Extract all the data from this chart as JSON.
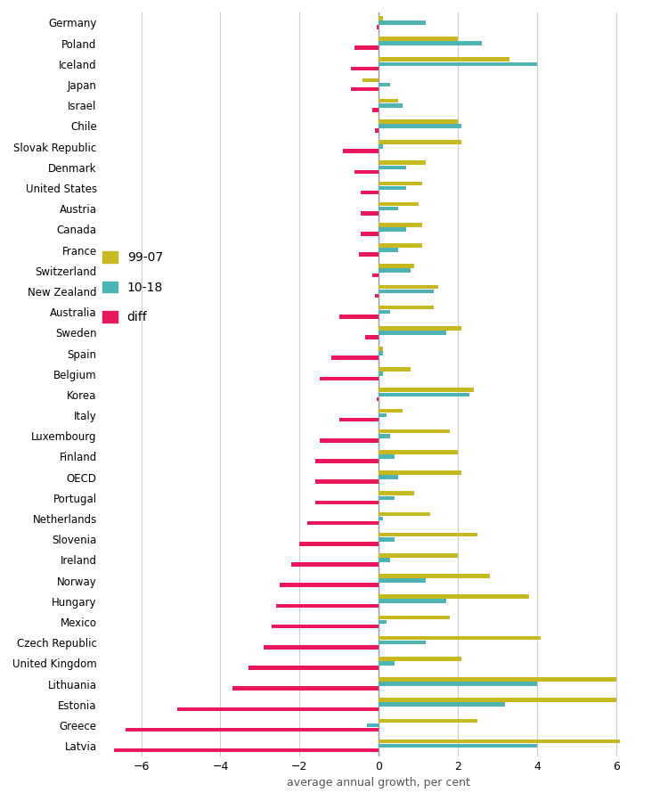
{
  "countries": [
    "Germany",
    "Poland",
    "Iceland",
    "Japan",
    "Israel",
    "Chile",
    "Slovak Republic",
    "Denmark",
    "United States",
    "Austria",
    "Canada",
    "France",
    "Switzerland",
    "New Zealand",
    "Australia",
    "Sweden",
    "Spain",
    "Belgium",
    "Korea",
    "Italy",
    "Luxembourg",
    "Finland",
    "OECD",
    "Portugal",
    "Netherlands",
    "Slovenia",
    "Ireland",
    "Norway",
    "Hungary",
    "Mexico",
    "Czech Republic",
    "United Kingdom",
    "Lithuania",
    "Estonia",
    "Greece",
    "Latvia"
  ],
  "val_9907": [
    0.1,
    2.0,
    3.3,
    -0.4,
    0.5,
    2.0,
    2.1,
    1.2,
    1.1,
    1.0,
    1.1,
    1.1,
    0.9,
    1.5,
    1.4,
    2.1,
    0.1,
    0.8,
    2.4,
    0.6,
    1.8,
    2.0,
    2.1,
    0.9,
    1.3,
    2.5,
    2.0,
    2.8,
    3.8,
    1.8,
    4.1,
    2.1,
    6.0,
    6.0,
    2.5,
    6.1
  ],
  "val_1018": [
    1.2,
    2.6,
    4.0,
    0.3,
    0.6,
    2.1,
    0.1,
    0.7,
    0.7,
    0.5,
    0.7,
    0.5,
    0.8,
    1.4,
    0.3,
    1.7,
    0.1,
    0.1,
    2.3,
    0.2,
    0.3,
    0.4,
    0.5,
    0.4,
    0.1,
    0.4,
    0.3,
    1.2,
    1.7,
    0.2,
    1.2,
    0.4,
    4.0,
    3.2,
    -0.3,
    4.0
  ],
  "val_diff": [
    -0.05,
    -0.6,
    -0.7,
    -0.7,
    -0.15,
    -0.1,
    -0.9,
    -0.6,
    -0.45,
    -0.45,
    -0.45,
    -0.5,
    -0.15,
    -0.1,
    -1.0,
    -0.35,
    -1.2,
    -1.5,
    -0.05,
    -1.0,
    -1.5,
    -1.6,
    -1.6,
    -1.6,
    -1.8,
    -2.0,
    -2.2,
    -2.5,
    -2.6,
    -2.7,
    -2.9,
    -3.3,
    -3.7,
    -5.1,
    -6.4,
    -6.7
  ],
  "color_9907": "#c8b820",
  "color_1018": "#4db3b3",
  "color_diff": "#e8185a",
  "xlabel": "average annual growth, per cent",
  "xlim": [
    -7,
    7
  ],
  "xticks": [
    -6,
    -4,
    -2,
    0,
    2,
    4,
    6
  ],
  "bar_height": 0.22,
  "background_color": "#ffffff",
  "grid_color": "#cccccc",
  "figsize": [
    7.5,
    8.99
  ],
  "dpi": 100
}
